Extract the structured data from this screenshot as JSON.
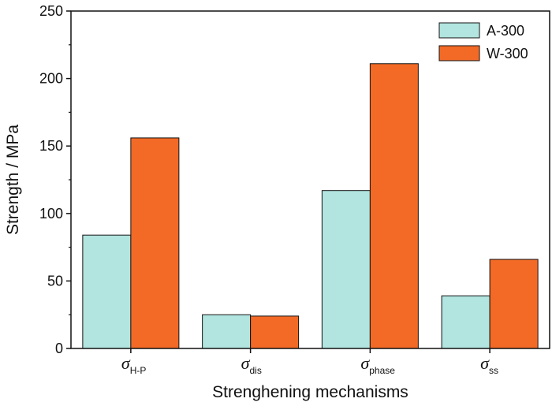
{
  "chart_data": {
    "type": "bar",
    "categories": [
      {
        "symbol": "σ",
        "sub": "H-P"
      },
      {
        "symbol": "σ",
        "sub": "dis"
      },
      {
        "symbol": "σ",
        "sub": "phase"
      },
      {
        "symbol": "σ",
        "sub": "ss"
      }
    ],
    "series": [
      {
        "name": "A-300",
        "color": "#b2e5df",
        "values": [
          84,
          25,
          117,
          39
        ]
      },
      {
        "name": "W-300",
        "color": "#f26a26",
        "values": [
          156,
          24,
          211,
          66
        ]
      }
    ],
    "xlabel": "Strenghening mechanisms",
    "ylabel": "Strength / MPa",
    "ylim": [
      0,
      250
    ],
    "yticks": [
      0,
      50,
      100,
      150,
      200,
      250
    ],
    "legend": "top-right",
    "grid": false
  }
}
